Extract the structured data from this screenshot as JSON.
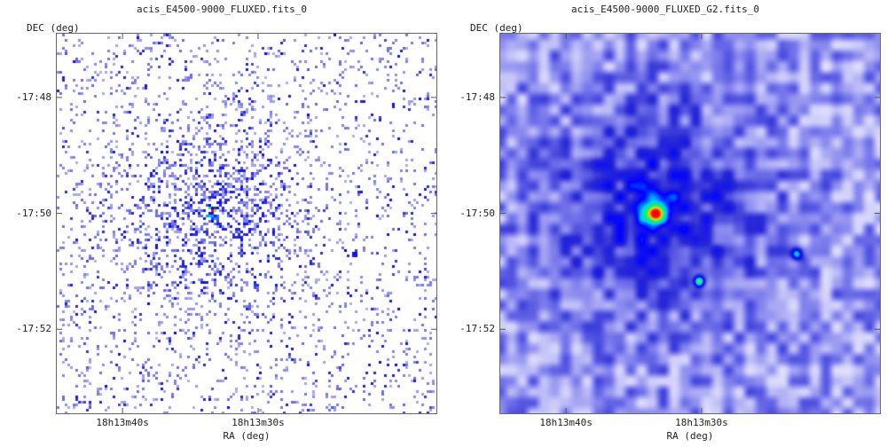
{
  "chart_data": [
    {
      "type": "heatmap",
      "title": "acis_E4500-9000_FLUXED.fits_0",
      "xlabel": "RA (deg)",
      "ylabel": "DEC (deg)",
      "x_ticks": [
        {
          "label": "18h13m40s",
          "ra_sec": 40
        },
        {
          "label": "18h13m30s",
          "ra_sec": 30
        }
      ],
      "y_ticks": [
        {
          "label": "-17:48",
          "dec_arcmin": -48
        },
        {
          "label": "-17:50",
          "dec_arcmin": -50
        },
        {
          "label": "-17:52",
          "dec_arcmin": -52
        }
      ],
      "ra_range_sec": [
        44.85,
        16.85
      ],
      "dec_range_arcmin": [
        -46.9,
        -53.45
      ],
      "rendering": "binned photon counts (unsmoothed)",
      "grid": false,
      "sources": [
        {
          "ra_sec": 33.45,
          "dec_arcmin": -50.0,
          "strength": 1.0
        },
        {
          "ra_sec": 30.2,
          "dec_arcmin": -51.17,
          "strength": 0.45
        },
        {
          "ra_sec": 23.0,
          "dec_arcmin": -50.7,
          "strength": 0.3
        }
      ],
      "colormap": [
        "#ffffff",
        "#c8c8f8",
        "#7878ec",
        "#2a2ad6",
        "#0000ff",
        "#00c8ff",
        "#00ff60",
        "#ffd000",
        "#ff0000"
      ]
    },
    {
      "type": "heatmap",
      "title": "acis_E4500-9000_FLUXED_G2.fits_0",
      "xlabel": "RA (deg)",
      "ylabel": "DEC (deg)",
      "x_ticks": [
        {
          "label": "18h13m40s",
          "ra_sec": 40
        },
        {
          "label": "18h13m30s",
          "ra_sec": 30
        }
      ],
      "y_ticks": [
        {
          "label": "-17:48",
          "dec_arcmin": -48
        },
        {
          "label": "-17:50",
          "dec_arcmin": -50
        },
        {
          "label": "-17:52",
          "dec_arcmin": -52
        }
      ],
      "ra_range_sec": [
        44.85,
        16.85
      ],
      "dec_range_arcmin": [
        -46.9,
        -53.45
      ],
      "rendering": "gaussian smoothed",
      "grid": false,
      "sources": [
        {
          "ra_sec": 33.45,
          "dec_arcmin": -50.0,
          "strength": 1.0
        },
        {
          "ra_sec": 30.2,
          "dec_arcmin": -51.17,
          "strength": 0.55
        },
        {
          "ra_sec": 23.0,
          "dec_arcmin": -50.7,
          "strength": 0.35
        }
      ],
      "colormap": [
        "#ffffff",
        "#c8c8f8",
        "#7878ec",
        "#2a2ad6",
        "#0000ff",
        "#00c8ff",
        "#00ff60",
        "#ffd000",
        "#ff0000"
      ]
    }
  ]
}
